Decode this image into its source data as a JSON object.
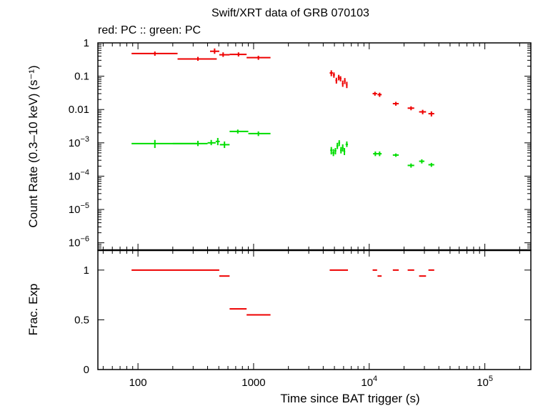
{
  "title": "Swift/XRT data of GRB 070103",
  "subtitle": "red: PC  :: green: PC",
  "colors": {
    "red": "#ee0000",
    "green": "#00dd00",
    "axis": "#000000"
  },
  "chart_data": [
    {
      "type": "scatter",
      "panel": "count-rate",
      "xscale": "log",
      "yscale": "log",
      "xlim": [
        45,
        250000
      ],
      "ylim": [
        6e-07,
        1
      ],
      "ylabel": "Count Rate (0.3–10 keV) (s⁻¹)",
      "yticks": [
        {
          "v": 1,
          "label": "1"
        },
        {
          "v": 0.1,
          "label": "0.1"
        },
        {
          "v": 0.01,
          "label": "0.01"
        },
        {
          "v": 0.001,
          "m": "10",
          "e": "−3"
        },
        {
          "v": 0.0001,
          "m": "10",
          "e": "−4"
        },
        {
          "v": 1e-05,
          "m": "10",
          "e": "−5"
        },
        {
          "v": 1e-06,
          "m": "10",
          "e": "−6"
        }
      ],
      "series": [
        {
          "color": "red",
          "points": [
            [
              140,
              88,
              220,
              0.48,
              0.41,
              0.55
            ],
            [
              330,
              220,
              480,
              0.33,
              0.29,
              0.38
            ],
            [
              460,
              420,
              505,
              0.56,
              0.47,
              0.68
            ],
            [
              545,
              505,
              620,
              0.44,
              0.38,
              0.52
            ],
            [
              740,
              620,
              870,
              0.45,
              0.39,
              0.52
            ],
            [
              1100,
              870,
              1400,
              0.36,
              0.31,
              0.41
            ],
            [
              4700,
              4550,
              4850,
              0.125,
              0.1,
              0.15
            ],
            [
              4950,
              4850,
              5050,
              0.11,
              0.09,
              0.13
            ],
            [
              5200,
              5100,
              5300,
              0.075,
              0.06,
              0.09
            ],
            [
              5450,
              5350,
              5550,
              0.092,
              0.075,
              0.11
            ],
            [
              5650,
              5550,
              5750,
              0.085,
              0.07,
              0.1
            ],
            [
              5900,
              5800,
              6000,
              0.06,
              0.048,
              0.074
            ],
            [
              6150,
              6050,
              6250,
              0.072,
              0.058,
              0.088
            ],
            [
              6400,
              6300,
              6500,
              0.055,
              0.044,
              0.068
            ],
            [
              11200,
              10700,
              11700,
              0.03,
              0.026,
              0.034
            ],
            [
              12300,
              11800,
              12800,
              0.028,
              0.024,
              0.032
            ],
            [
              17000,
              16000,
              18000,
              0.015,
              0.013,
              0.017
            ],
            [
              23000,
              21500,
              24500,
              0.011,
              0.0095,
              0.0125
            ],
            [
              29000,
              27000,
              31000,
              0.0085,
              0.0072,
              0.0098
            ],
            [
              34500,
              32500,
              36500,
              0.0075,
              0.0062,
              0.0088
            ]
          ]
        },
        {
          "color": "green",
          "points": [
            [
              140,
              88,
              330,
              0.00095,
              0.0007,
              0.00122
            ],
            [
              330,
              200,
              400,
              0.00095,
              0.0008,
              0.00115
            ],
            [
              430,
              400,
              470,
              0.001,
              0.00085,
              0.00122
            ],
            [
              490,
              470,
              510,
              0.0011,
              0.00085,
              0.0014
            ],
            [
              560,
              510,
              620,
              0.00088,
              0.0007,
              0.0011
            ],
            [
              730,
              620,
              900,
              0.0022,
              0.0019,
              0.0025
            ],
            [
              1100,
              900,
              1400,
              0.0019,
              0.0016,
              0.0022
            ],
            [
              4700,
              4600,
              4800,
              0.0006,
              0.00045,
              0.00075
            ],
            [
              4900,
              4800,
              5000,
              0.0005,
              0.0004,
              0.00065
            ],
            [
              5100,
              5000,
              5200,
              0.00058,
              0.00045,
              0.0007
            ],
            [
              5300,
              5200,
              5400,
              0.0008,
              0.00065,
              0.001
            ],
            [
              5500,
              5400,
              5600,
              0.001,
              0.0008,
              0.0012
            ],
            [
              5700,
              5600,
              5800,
              0.0006,
              0.00048,
              0.00075
            ],
            [
              5900,
              5800,
              6000,
              0.0007,
              0.00055,
              0.0009
            ],
            [
              6100,
              6000,
              6200,
              0.00055,
              0.00043,
              0.0007
            ],
            [
              6400,
              6250,
              6550,
              0.0009,
              0.00075,
              0.0011
            ],
            [
              11300,
              10800,
              11800,
              0.00047,
              0.0004,
              0.00055
            ],
            [
              12300,
              11800,
              12800,
              0.00047,
              0.0004,
              0.00055
            ],
            [
              17000,
              16000,
              18000,
              0.00043,
              0.00038,
              0.00048
            ],
            [
              23000,
              21500,
              24500,
              0.00021,
              0.00018,
              0.00024
            ],
            [
              28500,
              27000,
              30000,
              0.00028,
              0.00024,
              0.00032
            ],
            [
              34500,
              32500,
              36500,
              0.00022,
              0.00019,
              0.00025
            ]
          ]
        }
      ]
    },
    {
      "type": "scatter",
      "panel": "fractional-exposure",
      "xscale": "log",
      "xlim": [
        45,
        250000
      ],
      "ylim": [
        0,
        1.2
      ],
      "ylabel": "Frac. Exp",
      "xlabel": "Time since BAT trigger (s)",
      "yticks": [
        {
          "v": 0,
          "label": "0"
        },
        {
          "v": 0.5,
          "label": "0.5"
        },
        {
          "v": 1,
          "label": "1"
        }
      ],
      "xticks": [
        {
          "v": 100,
          "label": "100"
        },
        {
          "v": 1000,
          "label": "1000"
        },
        {
          "v": 10000,
          "m": "10",
          "e": "4"
        },
        {
          "v": 100000,
          "m": "10",
          "e": "5"
        }
      ],
      "series": [
        {
          "color": "red",
          "segments": [
            [
              88,
              505,
              1.0
            ],
            [
              505,
              620,
              0.94
            ],
            [
              620,
              870,
              0.61
            ],
            [
              870,
              1400,
              0.55
            ],
            [
              4550,
              6550,
              1.0
            ],
            [
              10700,
              11700,
              1.0
            ],
            [
              11800,
              12800,
              0.94
            ],
            [
              16000,
              18000,
              1.0
            ],
            [
              21500,
              24500,
              1.0
            ],
            [
              27000,
              31000,
              0.94
            ],
            [
              32500,
              36500,
              1.0
            ]
          ]
        }
      ]
    }
  ]
}
